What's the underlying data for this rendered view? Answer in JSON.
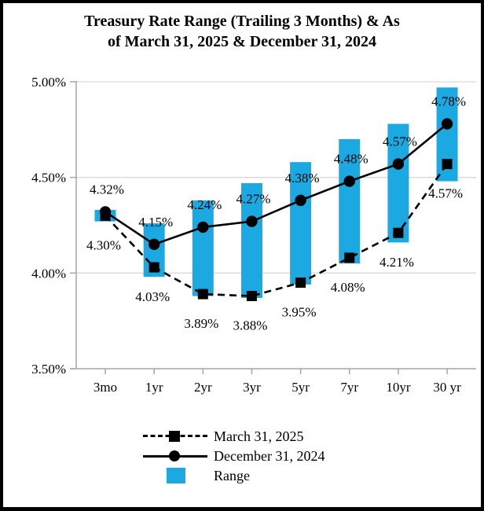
{
  "title": {
    "line1": "Treasury Rate Range (Trailing 3 Months) & As",
    "line2": "of March 31, 2025 & December 31, 2024"
  },
  "colors": {
    "range_bar": "#1CA8E1",
    "line": "#000000",
    "gridline": "#D9D9D9",
    "axis": "#A6A6A6"
  },
  "legend": {
    "items": [
      {
        "label": "March 31, 2025",
        "swatch": "dashed-line-square-marker"
      },
      {
        "label": "December 31, 2024",
        "swatch": "solid-line-circle-marker"
      },
      {
        "label": "Range",
        "swatch": "blue-rect"
      }
    ]
  },
  "chart_data": {
    "type": "bar",
    "subtype": "range-bars-with-two-line-series",
    "title": "Treasury Rate Range (Trailing 3 Months) & As of March 31, 2025 & December 31, 2024",
    "xlabel": "",
    "ylabel": "",
    "ylim": [
      3.5,
      5.0
    ],
    "grid": true,
    "legend_position": "bottom",
    "categories": [
      "3mo",
      "1yr",
      "2yr",
      "3yr",
      "5yr",
      "7yr",
      "10yr",
      "30 yr"
    ],
    "yticks": {
      "values": [
        5.0,
        4.5,
        4.0,
        3.5
      ],
      "labels": [
        "5.00%",
        "4.50%",
        "4.00%",
        "3.50%"
      ]
    },
    "series": [
      {
        "name": "March 31, 2025",
        "type": "line",
        "style": "dashed",
        "marker": "square",
        "values": [
          4.3,
          4.03,
          3.89,
          3.88,
          3.95,
          4.08,
          4.21,
          4.57
        ],
        "labels": [
          "4.30%",
          "4.03%",
          "3.89%",
          "3.88%",
          "3.95%",
          "4.08%",
          "4.21%",
          "4.57%"
        ]
      },
      {
        "name": "December 31, 2024",
        "type": "line",
        "style": "solid",
        "marker": "circle",
        "values": [
          4.32,
          4.15,
          4.24,
          4.27,
          4.38,
          4.48,
          4.57,
          4.78
        ],
        "labels": [
          "4.32%",
          "4.15%",
          "4.24%",
          "4.27%",
          "4.38%",
          "4.48%",
          "4.57%",
          "4.78%"
        ]
      },
      {
        "name": "Range",
        "type": "bar-range",
        "low": [
          4.27,
          3.98,
          3.88,
          3.87,
          3.94,
          4.05,
          4.16,
          4.48
        ],
        "high": [
          4.33,
          4.26,
          4.38,
          4.47,
          4.58,
          4.7,
          4.78,
          4.97
        ]
      }
    ]
  }
}
